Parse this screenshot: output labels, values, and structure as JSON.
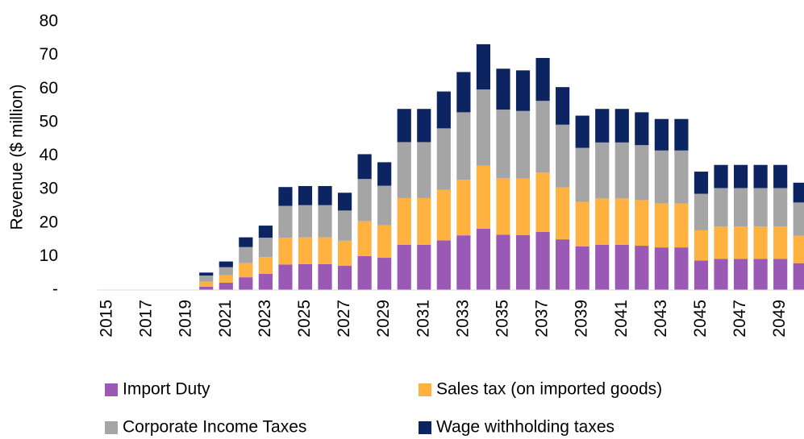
{
  "chart_data": {
    "type": "stacked_bar",
    "y_label": "Revenue ($ million)",
    "categories": [
      "2015",
      null,
      "2017",
      null,
      "2019",
      null,
      "2021",
      null,
      "2023",
      null,
      "2025",
      null,
      "2027",
      null,
      "2029",
      null,
      "2031",
      null,
      "2033",
      null,
      "2035",
      null,
      "2037",
      null,
      "2039",
      null,
      "2041",
      null,
      "2043",
      null,
      "2045",
      null,
      "2047",
      null,
      "2049",
      null
    ],
    "ylim": [
      0,
      80
    ],
    "yticks": [
      {
        "value": 0,
        "label": "-"
      },
      10,
      20,
      30,
      40,
      50,
      60,
      70,
      80
    ],
    "grid": false,
    "legend": "bottom",
    "series": [
      {
        "name": "Import Duty",
        "color": "#9b59b6",
        "values": [
          0,
          0,
          0,
          0,
          0,
          1.0,
          2.2,
          3.8,
          4.8,
          7.6,
          7.7,
          7.7,
          7.2,
          10.1,
          9.6,
          13.5,
          13.5,
          14.8,
          16.3,
          18.3,
          16.5,
          16.4,
          17.3,
          15.1,
          13.0,
          13.5,
          13.5,
          13.2,
          12.7,
          12.7,
          8.8,
          9.3,
          9.3,
          9.3,
          9.3,
          8.0
        ]
      },
      {
        "name": "Sales tax (on imported goods)",
        "color": "#ffb23f",
        "values": [
          0,
          0,
          0,
          0,
          0,
          1.5,
          2.2,
          4.2,
          5.0,
          8.0,
          8.0,
          8.0,
          7.5,
          10.4,
          9.7,
          13.9,
          13.9,
          15.1,
          16.6,
          18.8,
          16.9,
          16.8,
          17.7,
          15.5,
          13.3,
          13.8,
          13.8,
          13.6,
          13.1,
          13.1,
          9.0,
          9.6,
          9.6,
          9.6,
          9.6,
          8.2
        ]
      },
      {
        "name": "Corporate Income Taxes",
        "color": "#a5a5a5",
        "values": [
          0,
          0,
          0,
          0,
          0,
          1.8,
          2.4,
          4.8,
          5.8,
          9.5,
          9.6,
          9.6,
          9.0,
          12.6,
          11.8,
          16.7,
          16.7,
          18.3,
          20.1,
          22.7,
          20.4,
          20.2,
          21.4,
          18.7,
          16.1,
          16.7,
          16.7,
          16.4,
          15.8,
          15.8,
          10.9,
          11.5,
          11.5,
          11.5,
          11.5,
          9.9
        ]
      },
      {
        "name": "Wage withholding taxes",
        "color": "#0c2461",
        "values": [
          0,
          0,
          0,
          0,
          0,
          0.9,
          1.7,
          2.9,
          3.6,
          5.6,
          5.7,
          5.7,
          5.3,
          7.4,
          7.0,
          9.9,
          9.9,
          11.0,
          12.0,
          13.5,
          12.2,
          12.1,
          12.8,
          11.2,
          9.6,
          10.0,
          10.0,
          9.8,
          9.4,
          9.4,
          6.6,
          6.9,
          6.9,
          6.9,
          6.9,
          5.9
        ]
      }
    ]
  }
}
